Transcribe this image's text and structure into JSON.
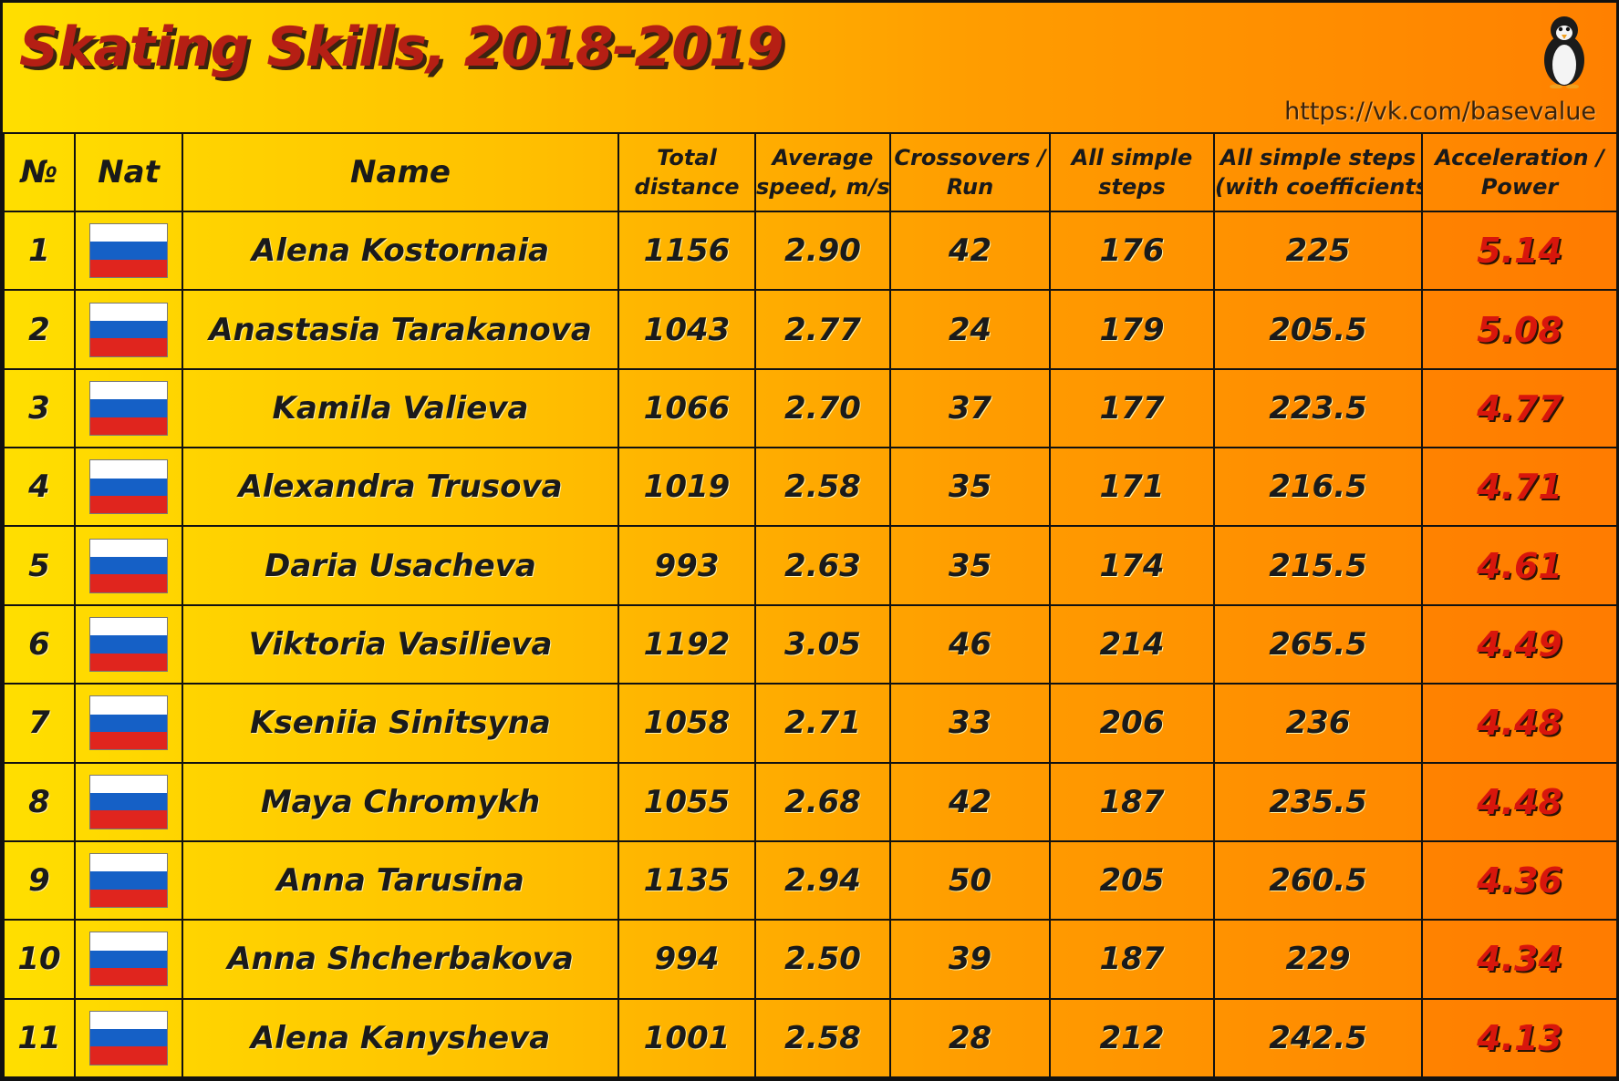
{
  "header": {
    "title": "Skating Skills, 2018-2019",
    "source": "https://vk.com/basevalue",
    "logo_icon": "penguin-icon"
  },
  "colors": {
    "title": "#b51f14",
    "highlight_value": "#d8160c",
    "flag_white": "#ffffff",
    "flag_blue": "#1560c6",
    "flag_red": "#e0251e"
  },
  "chart_data": {
    "type": "table",
    "title": "Skating Skills, 2018-2019",
    "columns": [
      "№",
      "Nat",
      "Name",
      "Total distance",
      "Average speed, m/s",
      "Crossovers / Run",
      "All simple steps",
      "All simple steps (with coefficients)",
      "Acceleration / Power"
    ],
    "header_lines": [
      [
        "№"
      ],
      [
        "Nat"
      ],
      [
        "Name"
      ],
      [
        "Total",
        "distance"
      ],
      [
        "Average",
        "speed, m/s"
      ],
      [
        "Crossovers /",
        "Run"
      ],
      [
        "All simple",
        "steps"
      ],
      [
        "All simple steps",
        "(with coefficients)"
      ],
      [
        "Acceleration /",
        "Power"
      ]
    ],
    "rows": [
      {
        "rank": "1",
        "nat": "russia-flag-icon",
        "name": "Alena Kostornaia",
        "total_distance": "1156",
        "avg_speed": "2.90",
        "crossovers_run": "42",
        "simple_steps": "176",
        "simple_steps_coef": "225",
        "acceleration_power": "5.14"
      },
      {
        "rank": "2",
        "nat": "russia-flag-icon",
        "name": "Anastasia Tarakanova",
        "total_distance": "1043",
        "avg_speed": "2.77",
        "crossovers_run": "24",
        "simple_steps": "179",
        "simple_steps_coef": "205.5",
        "acceleration_power": "5.08"
      },
      {
        "rank": "3",
        "nat": "russia-flag-icon",
        "name": "Kamila Valieva",
        "total_distance": "1066",
        "avg_speed": "2.70",
        "crossovers_run": "37",
        "simple_steps": "177",
        "simple_steps_coef": "223.5",
        "acceleration_power": "4.77"
      },
      {
        "rank": "4",
        "nat": "russia-flag-icon",
        "name": "Alexandra Trusova",
        "total_distance": "1019",
        "avg_speed": "2.58",
        "crossovers_run": "35",
        "simple_steps": "171",
        "simple_steps_coef": "216.5",
        "acceleration_power": "4.71"
      },
      {
        "rank": "5",
        "nat": "russia-flag-icon",
        "name": "Daria Usacheva",
        "total_distance": "993",
        "avg_speed": "2.63",
        "crossovers_run": "35",
        "simple_steps": "174",
        "simple_steps_coef": "215.5",
        "acceleration_power": "4.61"
      },
      {
        "rank": "6",
        "nat": "russia-flag-icon",
        "name": "Viktoria Vasilieva",
        "total_distance": "1192",
        "avg_speed": "3.05",
        "crossovers_run": "46",
        "simple_steps": "214",
        "simple_steps_coef": "265.5",
        "acceleration_power": "4.49"
      },
      {
        "rank": "7",
        "nat": "russia-flag-icon",
        "name": "Kseniia Sinitsyna",
        "total_distance": "1058",
        "avg_speed": "2.71",
        "crossovers_run": "33",
        "simple_steps": "206",
        "simple_steps_coef": "236",
        "acceleration_power": "4.48"
      },
      {
        "rank": "8",
        "nat": "russia-flag-icon",
        "name": "Maya Chromykh",
        "total_distance": "1055",
        "avg_speed": "2.68",
        "crossovers_run": "42",
        "simple_steps": "187",
        "simple_steps_coef": "235.5",
        "acceleration_power": "4.48"
      },
      {
        "rank": "9",
        "nat": "russia-flag-icon",
        "name": "Anna Tarusina",
        "total_distance": "1135",
        "avg_speed": "2.94",
        "crossovers_run": "50",
        "simple_steps": "205",
        "simple_steps_coef": "260.5",
        "acceleration_power": "4.36"
      },
      {
        "rank": "10",
        "nat": "russia-flag-icon",
        "name": "Anna Shcherbakova",
        "total_distance": "994",
        "avg_speed": "2.50",
        "crossovers_run": "39",
        "simple_steps": "187",
        "simple_steps_coef": "229",
        "acceleration_power": "4.34"
      },
      {
        "rank": "11",
        "nat": "russia-flag-icon",
        "name": "Alena Kanysheva",
        "total_distance": "1001",
        "avg_speed": "2.58",
        "crossovers_run": "28",
        "simple_steps": "212",
        "simple_steps_coef": "242.5",
        "acceleration_power": "4.13"
      }
    ]
  }
}
